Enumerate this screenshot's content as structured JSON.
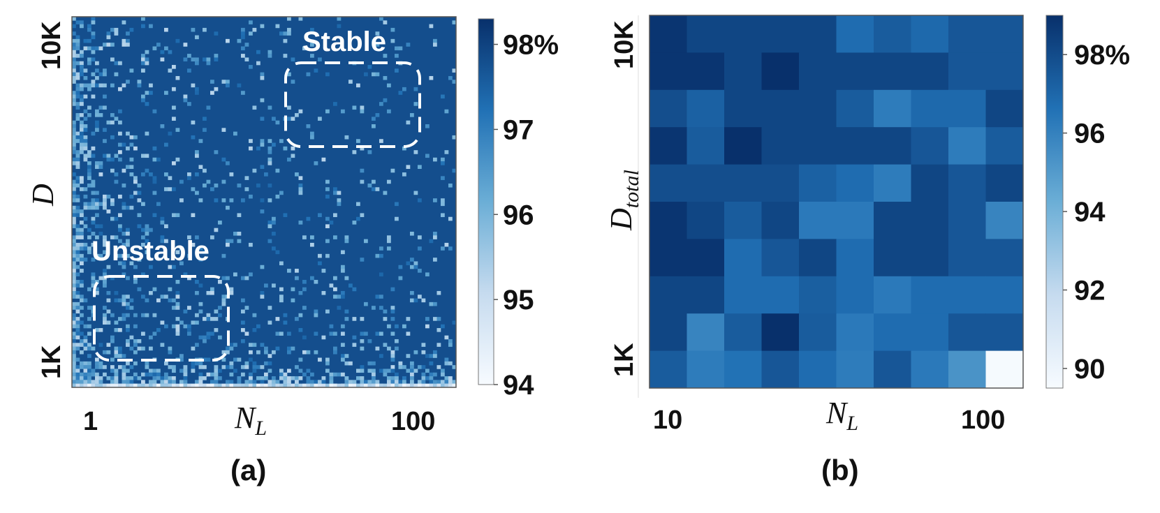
{
  "chart_data": [
    {
      "panel": "(a)",
      "type": "heatmap",
      "xlabel_main": "N",
      "xlabel_sub": "L",
      "ylabel_main": "D",
      "ylabel_sub": "",
      "x_tick_labels": [
        "1",
        "100"
      ],
      "y_tick_labels": [
        "10K",
        "1K"
      ],
      "colorbar": {
        "min": 94,
        "max": 98.3,
        "tick_labels": [
          "98%",
          "97",
          "96",
          "95",
          "94"
        ],
        "tick_values": [
          98,
          97,
          96,
          95,
          94
        ]
      },
      "grid_size": 100,
      "background_value": 97.8,
      "annotations": [
        {
          "label": "Stable",
          "region": "top-right"
        },
        {
          "label": "Unstable",
          "region": "bottom-left"
        }
      ]
    },
    {
      "panel": "(b)",
      "type": "heatmap",
      "xlabel_main": "N",
      "xlabel_sub": "L",
      "ylabel_main": "D",
      "ylabel_sub": "total",
      "x_tick_labels": [
        "10",
        "100"
      ],
      "y_tick_labels": [
        "10K",
        "1K"
      ],
      "colorbar": {
        "min": 89.5,
        "max": 99,
        "tick_labels": [
          "98%",
          "96",
          "94",
          "92",
          "90"
        ],
        "tick_values": [
          98,
          96,
          94,
          92,
          90
        ]
      },
      "rows_top_to_bottom": [
        [
          98.8,
          98.2,
          98.2,
          98.2,
          98.2,
          96.8,
          97.4,
          96.9,
          97.6,
          97.6
        ],
        [
          98.8,
          98.8,
          98.2,
          99.2,
          98.2,
          98.2,
          98.2,
          98.2,
          97.6,
          97.6
        ],
        [
          97.9,
          97.2,
          98.2,
          98.2,
          98.2,
          97.4,
          96.2,
          96.9,
          96.9,
          98.2
        ],
        [
          98.8,
          97.4,
          99.2,
          98.2,
          98.2,
          98.2,
          98.2,
          97.6,
          96.2,
          97.4
        ],
        [
          97.9,
          97.9,
          97.9,
          97.9,
          97.2,
          96.8,
          96.2,
          98.2,
          97.6,
          98.2
        ],
        [
          98.8,
          98.2,
          97.4,
          98.2,
          96.3,
          96.3,
          98.2,
          98.2,
          97.6,
          95.9
        ],
        [
          98.8,
          98.8,
          96.8,
          97.6,
          98.2,
          96.8,
          98.2,
          98.2,
          97.6,
          97.6
        ],
        [
          98.2,
          98.2,
          96.8,
          96.8,
          97.3,
          96.8,
          96.3,
          96.8,
          96.8,
          96.8
        ],
        [
          98.2,
          95.9,
          97.4,
          99.3,
          97.4,
          96.3,
          96.8,
          96.8,
          97.6,
          97.6
        ],
        [
          97.4,
          96.2,
          96.6,
          97.6,
          96.8,
          96.2,
          97.6,
          96.3,
          95.3,
          89.6
        ]
      ]
    }
  ]
}
